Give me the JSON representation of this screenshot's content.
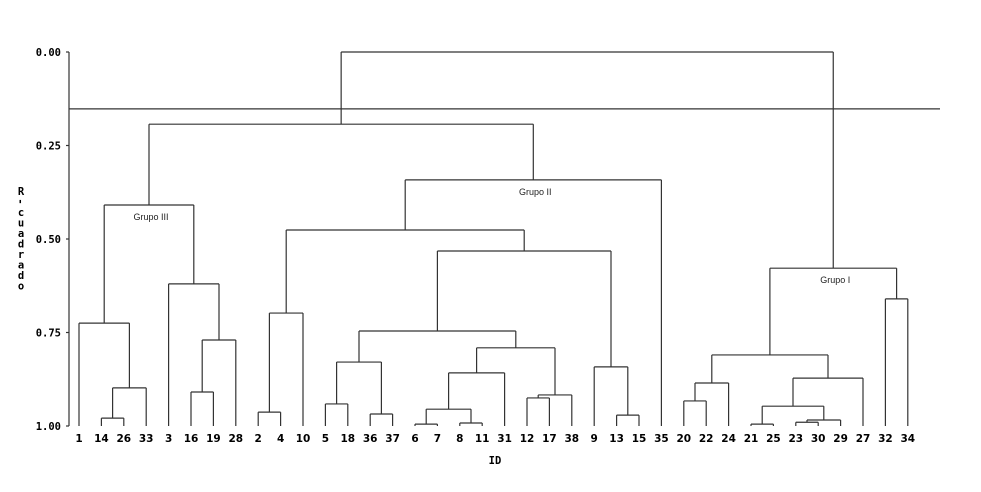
{
  "chart_data": {
    "type": "dendrogram",
    "title": "",
    "xlabel": "ID",
    "ylabel": "R-cuadrado",
    "ylim": [
      0,
      1
    ],
    "yticks": [
      "0.00",
      "0.25",
      "0.50",
      "0.75",
      "1.00"
    ],
    "ytick_values": [
      0,
      0.25,
      0.5,
      0.75,
      1.0
    ],
    "cut_line": 0.152,
    "leaf_order": [
      1,
      14,
      26,
      33,
      3,
      16,
      19,
      28,
      2,
      4,
      10,
      5,
      18,
      36,
      37,
      6,
      7,
      8,
      11,
      31,
      12,
      17,
      38,
      9,
      13,
      15,
      35,
      20,
      22,
      24,
      21,
      25,
      23,
      30,
      29,
      27,
      32,
      34
    ],
    "tree": {
      "h": 0.0,
      "children": [
        {
          "h": 0.193,
          "children": [
            {
              "h": 0.409,
              "label": "Grupo III",
              "children": [
                {
                  "h": 0.725,
                  "children": [
                    1,
                    {
                      "h": 0.898,
                      "children": [
                        {
                          "h": 0.979,
                          "children": [
                            14,
                            26
                          ]
                        },
                        33
                      ]
                    }
                  ]
                },
                {
                  "h": 0.62,
                  "children": [
                    3,
                    {
                      "h": 0.77,
                      "children": [
                        {
                          "h": 0.909,
                          "children": [
                            16,
                            19
                          ]
                        },
                        28
                      ]
                    }
                  ]
                }
              ]
            },
            {
              "h": 0.342,
              "label": "Grupo II",
              "children": [
                {
                  "h": 0.476,
                  "children": [
                    {
                      "h": 0.698,
                      "children": [
                        {
                          "h": 0.963,
                          "children": [
                            2,
                            4
                          ]
                        },
                        10
                      ]
                    },
                    {
                      "h": 0.532,
                      "children": [
                        {
                          "h": 0.746,
                          "children": [
                            {
                              "h": 0.829,
                              "children": [
                                {
                                  "h": 0.941,
                                  "children": [
                                    5,
                                    18
                                  ]
                                },
                                {
                                  "h": 0.968,
                                  "children": [
                                    36,
                                    37
                                  ]
                                }
                              ]
                            },
                            {
                              "h": 0.791,
                              "children": [
                                {
                                  "h": 0.858,
                                  "children": [
                                    {
                                      "h": 0.955,
                                      "children": [
                                        {
                                          "h": 0.995,
                                          "children": [
                                            6,
                                            7
                                          ]
                                        },
                                        {
                                          "h": 0.992,
                                          "children": [
                                            8,
                                            11
                                          ]
                                        }
                                      ]
                                    },
                                    31
                                  ]
                                },
                                {
                                  "h": 0.917,
                                  "children": [
                                    {
                                      "h": 0.925,
                                      "children": [
                                        12,
                                        17
                                      ]
                                    },
                                    38
                                  ]
                                }
                              ]
                            }
                          ]
                        },
                        {
                          "h": 0.842,
                          "children": [
                            9,
                            {
                              "h": 0.971,
                              "children": [
                                13,
                                15
                              ]
                            }
                          ]
                        }
                      ]
                    }
                  ]
                },
                35
              ]
            }
          ]
        },
        {
          "h": 0.578,
          "label": "Grupo I",
          "children": [
            {
              "h": 0.81,
              "children": [
                {
                  "h": 0.885,
                  "children": [
                    {
                      "h": 0.933,
                      "children": [
                        20,
                        22
                      ]
                    },
                    24
                  ]
                },
                {
                  "h": 0.872,
                  "children": [
                    {
                      "h": 0.947,
                      "children": [
                        {
                          "h": 0.995,
                          "children": [
                            21,
                            25
                          ]
                        },
                        {
                          "h": 0.984,
                          "children": [
                            {
                              "h": 0.99,
                              "children": [
                                23,
                                30
                              ]
                            },
                            29
                          ]
                        }
                      ]
                    },
                    27
                  ]
                }
              ]
            },
            {
              "h": 0.66,
              "children": [
                32,
                34
              ]
            }
          ]
        }
      ]
    }
  }
}
